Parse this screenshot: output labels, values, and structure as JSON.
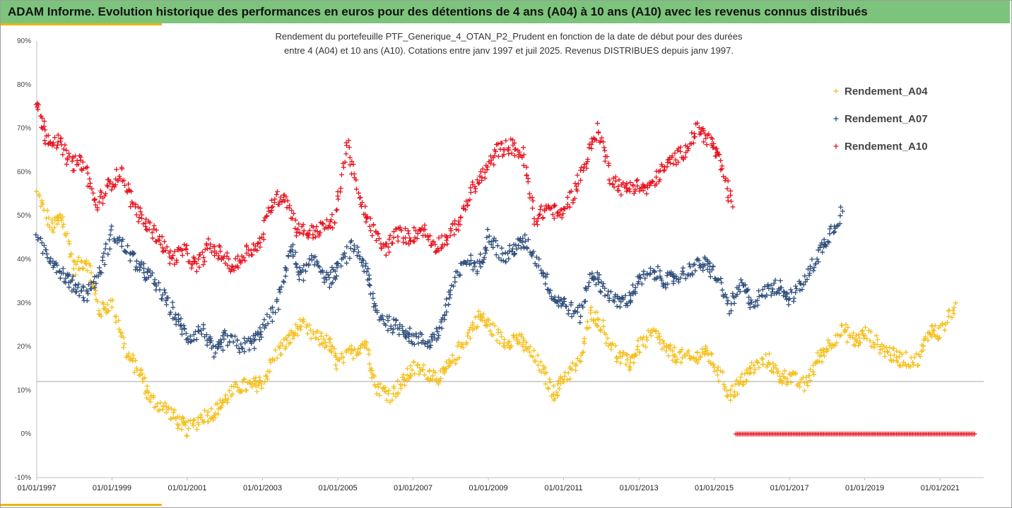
{
  "banner": {
    "title": "ADAM Informe. Evolution historique des performances en euros pour des détentions de 4 ans (A04) à 10 ans (A10) avec les revenus connus distribués"
  },
  "colors": {
    "banner_bg": "#7cc47b",
    "accent_bar": "#e8b800",
    "A04": "#f5c01e",
    "A07": "#2f4e7c",
    "A10": "#e8121e",
    "reference_line": "#a6a6a6"
  },
  "chart_data": {
    "type": "scatter",
    "marker": "plus",
    "title_lines": [
      "Rendement du portefeuille PTF_Generique_4_OTAN_P2_Prudent  en fonction de la date de début pour des durées",
      "entre 4 (A04) et 10 ans (A10). Cotations entre janv 1997 et juil 2025. Revenus DISTRIBUES depuis janv 1997."
    ],
    "x_axis": {
      "type": "date",
      "range": [
        "1997-01-01",
        "2022-03-01"
      ],
      "tick_labels": [
        "01/01/1997",
        "01/01/1999",
        "01/01/2001",
        "01/01/2003",
        "01/01/2005",
        "01/01/2007",
        "01/01/2009",
        "01/01/2011",
        "01/01/2013",
        "01/01/2015",
        "01/01/2017",
        "01/01/2019",
        "01/01/2021"
      ]
    },
    "y_axis": {
      "range": [
        -0.1,
        0.9
      ],
      "tick_labels": [
        "-10%",
        "0%",
        "10%",
        "20%",
        "30%",
        "40%",
        "50%",
        "60%",
        "70%",
        "80%",
        "90%"
      ],
      "gridlines": false
    },
    "reference_line": {
      "y": 0.12
    },
    "legend": {
      "position": "top-right",
      "entries": [
        "Rendement_A04",
        "Rendement_A07",
        "Rendement_A10"
      ]
    },
    "series": [
      {
        "name": "Rendement_A04",
        "color": "#f5c01e",
        "x": [
          "1997-01",
          "1997-06",
          "1997-09",
          "1998-01",
          "1998-05",
          "1998-09",
          "1999-01",
          "1999-06",
          "1999-10",
          "2000-01",
          "2000-06",
          "2000-10",
          "2001-01",
          "2001-06",
          "2001-10",
          "2002-01",
          "2002-06",
          "2002-10",
          "2003-01",
          "2003-06",
          "2003-10",
          "2004-01",
          "2004-06",
          "2004-10",
          "2005-01",
          "2005-06",
          "2005-10",
          "2006-01",
          "2006-06",
          "2006-10",
          "2007-01",
          "2007-06",
          "2007-10",
          "2008-01",
          "2008-06",
          "2008-10",
          "2009-01",
          "2009-06",
          "2009-10",
          "2010-01",
          "2010-06",
          "2010-10",
          "2011-01",
          "2011-06",
          "2011-10",
          "2012-01",
          "2012-06",
          "2012-10",
          "2013-01",
          "2013-06",
          "2013-10",
          "2014-01",
          "2014-06",
          "2014-10",
          "2015-01",
          "2015-06",
          "2015-10",
          "2016-01",
          "2016-06",
          "2016-10",
          "2017-01",
          "2017-06",
          "2017-10",
          "2018-01",
          "2018-06",
          "2018-10",
          "2019-01",
          "2019-06",
          "2019-10",
          "2020-01",
          "2020-06",
          "2020-10",
          "2021-01",
          "2021-06"
        ],
        "y": [
          0.55,
          0.47,
          0.5,
          0.38,
          0.4,
          0.28,
          0.3,
          0.18,
          0.14,
          0.08,
          0.06,
          0.03,
          0.01,
          0.04,
          0.05,
          0.08,
          0.11,
          0.11,
          0.12,
          0.19,
          0.22,
          0.25,
          0.22,
          0.21,
          0.16,
          0.19,
          0.21,
          0.11,
          0.09,
          0.12,
          0.15,
          0.14,
          0.13,
          0.16,
          0.22,
          0.27,
          0.25,
          0.21,
          0.22,
          0.2,
          0.15,
          0.09,
          0.13,
          0.16,
          0.28,
          0.25,
          0.18,
          0.16,
          0.2,
          0.23,
          0.19,
          0.18,
          0.17,
          0.19,
          0.16,
          0.09,
          0.12,
          0.15,
          0.17,
          0.13,
          0.13,
          0.11,
          0.17,
          0.2,
          0.24,
          0.21,
          0.23,
          0.2,
          0.18,
          0.17,
          0.17,
          0.24,
          0.23,
          0.3
        ]
      },
      {
        "name": "Rendement_A07",
        "color": "#2f4e7c",
        "x": [
          "1997-01",
          "1997-06",
          "1997-10",
          "1998-01",
          "1998-05",
          "1998-09",
          "1999-01",
          "1999-06",
          "1999-10",
          "2000-01",
          "2000-06",
          "2000-10",
          "2001-01",
          "2001-06",
          "2001-10",
          "2002-01",
          "2002-06",
          "2002-10",
          "2003-01",
          "2003-06",
          "2003-10",
          "2004-01",
          "2004-06",
          "2004-10",
          "2005-01",
          "2005-06",
          "2005-10",
          "2006-01",
          "2006-06",
          "2006-10",
          "2007-01",
          "2007-06",
          "2007-10",
          "2008-01",
          "2008-06",
          "2008-10",
          "2009-01",
          "2009-06",
          "2009-10",
          "2010-01",
          "2010-06",
          "2010-10",
          "2011-01",
          "2011-06",
          "2011-10",
          "2012-01",
          "2012-06",
          "2012-10",
          "2013-01",
          "2013-06",
          "2013-10",
          "2014-01",
          "2014-06",
          "2014-10",
          "2015-01",
          "2015-06",
          "2015-10",
          "2016-01",
          "2016-06",
          "2016-10",
          "2017-01",
          "2017-06",
          "2017-10",
          "2018-01",
          "2018-06"
        ],
        "y": [
          0.44,
          0.4,
          0.36,
          0.34,
          0.32,
          0.37,
          0.46,
          0.42,
          0.38,
          0.36,
          0.31,
          0.26,
          0.22,
          0.24,
          0.18,
          0.22,
          0.2,
          0.21,
          0.24,
          0.3,
          0.43,
          0.36,
          0.4,
          0.35,
          0.38,
          0.43,
          0.38,
          0.28,
          0.25,
          0.24,
          0.22,
          0.21,
          0.24,
          0.33,
          0.4,
          0.38,
          0.46,
          0.4,
          0.43,
          0.44,
          0.38,
          0.31,
          0.3,
          0.27,
          0.37,
          0.34,
          0.3,
          0.31,
          0.35,
          0.37,
          0.35,
          0.36,
          0.38,
          0.39,
          0.37,
          0.29,
          0.34,
          0.3,
          0.33,
          0.34,
          0.31,
          0.35,
          0.41,
          0.45,
          0.51
        ]
      },
      {
        "name": "Rendement_A10",
        "color": "#e8121e",
        "x": [
          "1997-01",
          "1997-04",
          "1997-08",
          "1997-12",
          "1998-04",
          "1998-08",
          "1998-12",
          "1999-04",
          "1999-08",
          "1999-12",
          "2000-04",
          "2000-08",
          "2000-12",
          "2001-04",
          "2001-08",
          "2001-12",
          "2002-04",
          "2002-08",
          "2002-12",
          "2003-04",
          "2003-08",
          "2003-12",
          "2004-04",
          "2004-08",
          "2004-12",
          "2005-04",
          "2005-08",
          "2005-12",
          "2006-04",
          "2006-08",
          "2006-12",
          "2007-04",
          "2007-08",
          "2007-12",
          "2008-04",
          "2008-08",
          "2008-12",
          "2009-04",
          "2009-08",
          "2009-12",
          "2010-04",
          "2010-08",
          "2010-12",
          "2011-04",
          "2011-08",
          "2011-12",
          "2012-04",
          "2012-08",
          "2012-12",
          "2013-04",
          "2013-08",
          "2013-12",
          "2014-04",
          "2014-08",
          "2014-12",
          "2015-03",
          "2015-07"
        ],
        "y": [
          0.76,
          0.68,
          0.67,
          0.62,
          0.62,
          0.52,
          0.57,
          0.6,
          0.52,
          0.48,
          0.45,
          0.4,
          0.42,
          0.38,
          0.43,
          0.41,
          0.38,
          0.42,
          0.43,
          0.53,
          0.55,
          0.47,
          0.46,
          0.47,
          0.49,
          0.67,
          0.53,
          0.47,
          0.42,
          0.46,
          0.45,
          0.47,
          0.43,
          0.45,
          0.49,
          0.56,
          0.6,
          0.65,
          0.66,
          0.64,
          0.49,
          0.52,
          0.5,
          0.55,
          0.62,
          0.7,
          0.59,
          0.56,
          0.57,
          0.56,
          0.6,
          0.63,
          0.65,
          0.7,
          0.67,
          0.62,
          0.52
        ]
      },
      {
        "name": "Rendement_A10",
        "x": [
          "2015-08",
          "2021-12"
        ],
        "y": [
          0.0,
          0.0
        ],
        "note_style": "dense row of markers at 0%"
      }
    ]
  }
}
